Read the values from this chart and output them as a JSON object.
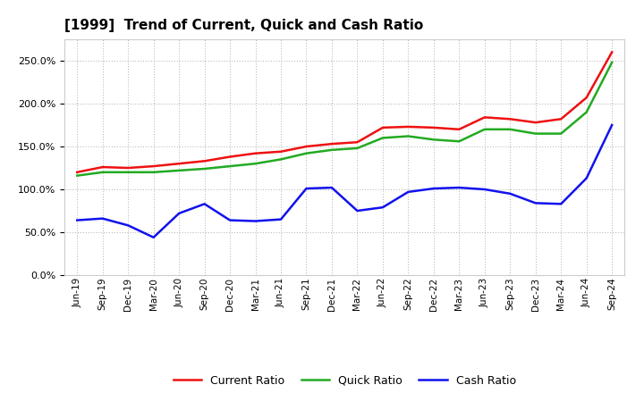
{
  "title": "[1999]  Trend of Current, Quick and Cash Ratio",
  "x_labels": [
    "Jun-19",
    "Sep-19",
    "Dec-19",
    "Mar-20",
    "Jun-20",
    "Sep-20",
    "Dec-20",
    "Mar-21",
    "Jun-21",
    "Sep-21",
    "Dec-21",
    "Mar-22",
    "Jun-22",
    "Sep-22",
    "Dec-22",
    "Mar-23",
    "Jun-23",
    "Sep-23",
    "Dec-23",
    "Mar-24",
    "Jun-24",
    "Sep-24"
  ],
  "current_ratio": [
    1.2,
    1.26,
    1.25,
    1.27,
    1.3,
    1.33,
    1.38,
    1.42,
    1.44,
    1.5,
    1.53,
    1.55,
    1.72,
    1.73,
    1.72,
    1.7,
    1.84,
    1.82,
    1.78,
    1.82,
    2.07,
    2.6
  ],
  "quick_ratio": [
    1.16,
    1.2,
    1.2,
    1.2,
    1.22,
    1.24,
    1.27,
    1.3,
    1.35,
    1.42,
    1.46,
    1.48,
    1.6,
    1.62,
    1.58,
    1.56,
    1.7,
    1.7,
    1.65,
    1.65,
    1.9,
    2.48
  ],
  "cash_ratio": [
    0.64,
    0.66,
    0.58,
    0.44,
    0.72,
    0.83,
    0.64,
    0.63,
    0.65,
    1.01,
    1.02,
    0.75,
    0.79,
    0.97,
    1.01,
    1.02,
    1.0,
    0.95,
    0.84,
    0.83,
    1.13,
    1.75
  ],
  "current_color": "#EE1111",
  "quick_color": "#22AA22",
  "cash_color": "#1111EE",
  "bg_color": "#FFFFFF",
  "plot_bg_color": "#FFFFFF",
  "grid_color": "#999999",
  "ylim": [
    0.0,
    2.75
  ],
  "yticks": [
    0.0,
    0.5,
    1.0,
    1.5,
    2.0,
    2.5
  ],
  "legend_labels": [
    "Current Ratio",
    "Quick Ratio",
    "Cash Ratio"
  ]
}
